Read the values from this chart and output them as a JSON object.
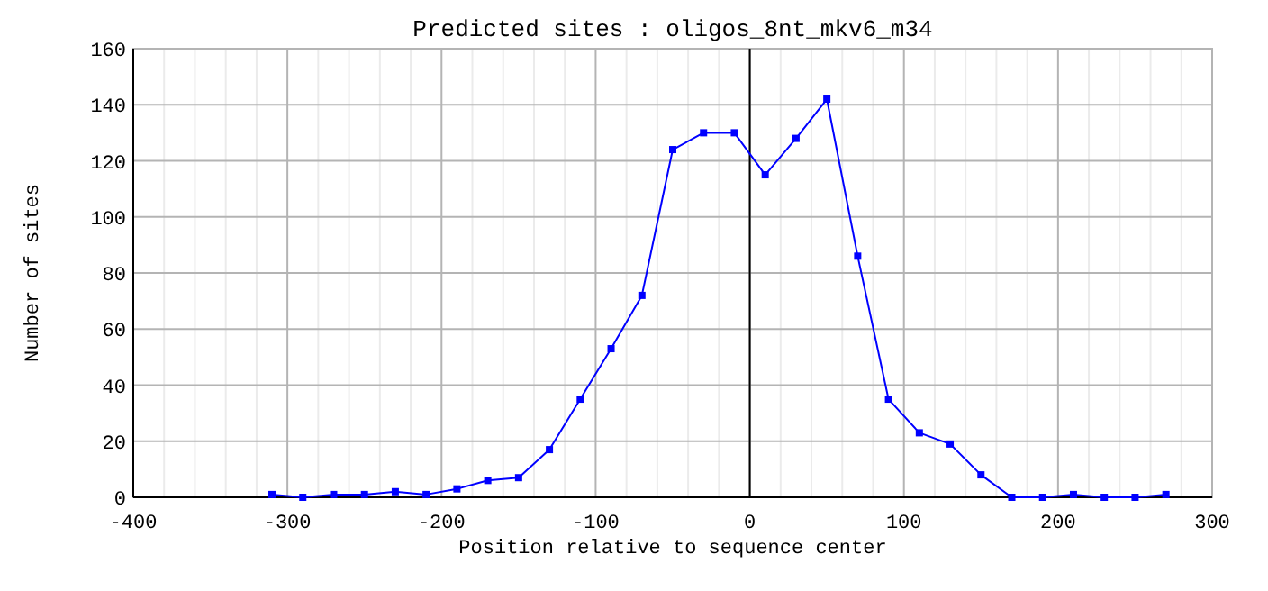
{
  "chart_data": {
    "type": "line",
    "title": "Predicted sites : oligos_8nt_mkv6_m34",
    "xlabel": "Position relative to sequence center",
    "ylabel": "Number of sites",
    "x": [
      -310,
      -290,
      -270,
      -250,
      -230,
      -210,
      -190,
      -170,
      -150,
      -130,
      -110,
      -90,
      -70,
      -50,
      -30,
      -10,
      10,
      30,
      50,
      70,
      90,
      110,
      130,
      150,
      170,
      190,
      210,
      230,
      250,
      270
    ],
    "series": [
      {
        "color": "#0000ff",
        "values": [
          1,
          0,
          1,
          1,
          2,
          1,
          3,
          6,
          7,
          17,
          35,
          53,
          72,
          124,
          130,
          130,
          115,
          128,
          142,
          86,
          35,
          23,
          19,
          8,
          0,
          0,
          1,
          0,
          0,
          1
        ]
      }
    ],
    "xlim": [
      -400,
      300
    ],
    "ylim": [
      0,
      160
    ],
    "xticks": [
      -400,
      {
        "value": -380,
        "label": null
      },
      {
        "value": -360,
        "label": null
      },
      {
        "value": -340,
        "label": null
      },
      {
        "value": -320,
        "label": null
      },
      -300,
      {
        "value": -280,
        "label": null
      },
      {
        "value": -260,
        "label": null
      },
      {
        "value": -240,
        "label": null
      },
      {
        "value": -220,
        "label": null
      },
      -200,
      {
        "value": -180,
        "label": null
      },
      {
        "value": -160,
        "label": null
      },
      {
        "value": -140,
        "label": null
      },
      {
        "value": -120,
        "label": null
      },
      -100,
      {
        "value": -80,
        "label": null
      },
      {
        "value": -60,
        "label": null
      },
      {
        "value": -40,
        "label": null
      },
      {
        "value": -20,
        "label": null
      },
      0,
      {
        "value": 20,
        "label": null
      },
      {
        "value": 40,
        "label": null
      },
      {
        "value": 60,
        "label": null
      },
      {
        "value": 80,
        "label": null
      },
      100,
      {
        "value": 120,
        "label": null
      },
      {
        "value": 140,
        "label": null
      },
      {
        "value": 160,
        "label": null
      },
      {
        "value": 180,
        "label": null
      },
      200,
      {
        "value": 220,
        "label": null
      },
      {
        "value": 240,
        "label": null
      },
      {
        "value": 260,
        "label": null
      },
      {
        "value": 280,
        "label": null
      },
      300
    ],
    "yticks": [
      0,
      20,
      40,
      60,
      80,
      100,
      120,
      140,
      160
    ],
    "grid": true,
    "marker": "square",
    "line_style": "solid",
    "ref_lines": [
      {
        "axis": "x",
        "value": 0,
        "color": "#000000"
      }
    ]
  }
}
